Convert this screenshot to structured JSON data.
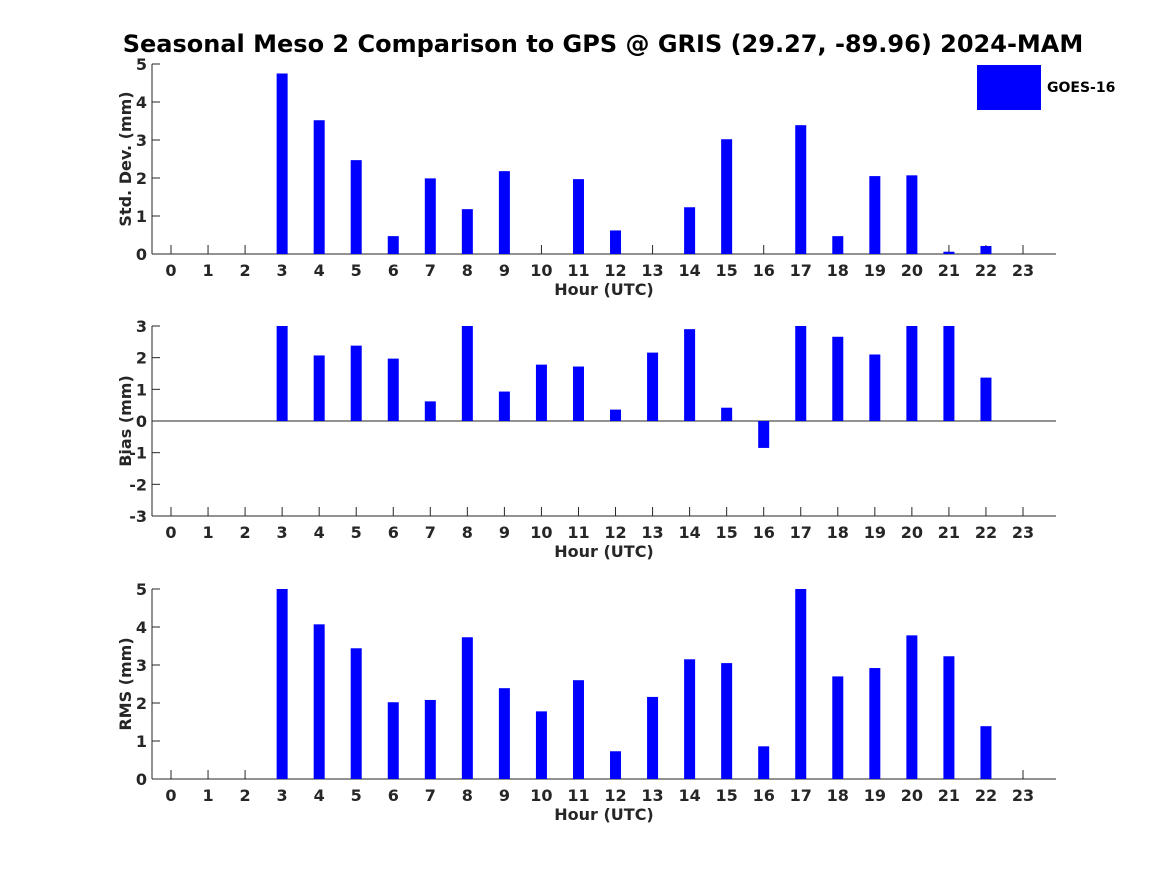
{
  "chart_data": [
    {
      "type": "bar",
      "title": "Seasonal Meso 2 Comparison to GPS @ GRIS (29.27, -89.96) 2024-MAM",
      "xlabel": "Hour (UTC)",
      "ylabel": "Std. Dev. (mm)",
      "ylim": [
        0,
        5
      ],
      "yticks": [
        0,
        1,
        2,
        3,
        4,
        5
      ],
      "categories": [
        "0",
        "1",
        "2",
        "3",
        "4",
        "5",
        "6",
        "7",
        "8",
        "9",
        "10",
        "11",
        "12",
        "13",
        "14",
        "15",
        "16",
        "17",
        "18",
        "19",
        "20",
        "21",
        "22",
        "23"
      ],
      "series": [
        {
          "name": "GOES-16",
          "values": [
            null,
            null,
            null,
            4.75,
            3.52,
            2.47,
            0.47,
            1.99,
            1.18,
            2.18,
            null,
            1.97,
            0.62,
            null,
            1.23,
            3.02,
            null,
            3.39,
            0.47,
            2.05,
            2.07,
            0.06,
            0.21,
            null
          ]
        }
      ],
      "legend": "top-right",
      "grid": false
    },
    {
      "type": "bar",
      "title": "",
      "xlabel": "Hour (UTC)",
      "ylabel": "Bias (mm)",
      "ylim": [
        -3,
        3
      ],
      "yticks": [
        -3,
        -2,
        -1,
        0,
        1,
        2,
        3
      ],
      "categories": [
        "0",
        "1",
        "2",
        "3",
        "4",
        "5",
        "6",
        "7",
        "8",
        "9",
        "10",
        "11",
        "12",
        "13",
        "14",
        "15",
        "16",
        "17",
        "18",
        "19",
        "20",
        "21",
        "22",
        "23"
      ],
      "series": [
        {
          "name": "GOES-16",
          "values": [
            null,
            null,
            null,
            3.0,
            2.07,
            2.38,
            1.97,
            0.62,
            3.0,
            0.93,
            1.78,
            1.72,
            0.36,
            2.16,
            2.9,
            0.42,
            -0.85,
            3.0,
            2.66,
            2.1,
            3.0,
            3.0,
            1.37,
            null
          ]
        }
      ],
      "grid": false
    },
    {
      "type": "bar",
      "title": "",
      "xlabel": "Hour (UTC)",
      "ylabel": "RMS (mm)",
      "ylim": [
        0,
        5
      ],
      "yticks": [
        0,
        1,
        2,
        3,
        4,
        5
      ],
      "categories": [
        "0",
        "1",
        "2",
        "3",
        "4",
        "5",
        "6",
        "7",
        "8",
        "9",
        "10",
        "11",
        "12",
        "13",
        "14",
        "15",
        "16",
        "17",
        "18",
        "19",
        "20",
        "21",
        "22",
        "23"
      ],
      "series": [
        {
          "name": "GOES-16",
          "values": [
            null,
            null,
            null,
            5.0,
            4.07,
            3.44,
            2.02,
            2.08,
            3.73,
            2.39,
            1.78,
            2.6,
            0.73,
            2.16,
            3.15,
            3.05,
            0.86,
            5.0,
            2.7,
            2.92,
            3.78,
            3.23,
            1.39,
            null
          ]
        }
      ],
      "grid": false
    }
  ],
  "colors": {
    "bar": "#0000ff",
    "axis": "#262626"
  }
}
